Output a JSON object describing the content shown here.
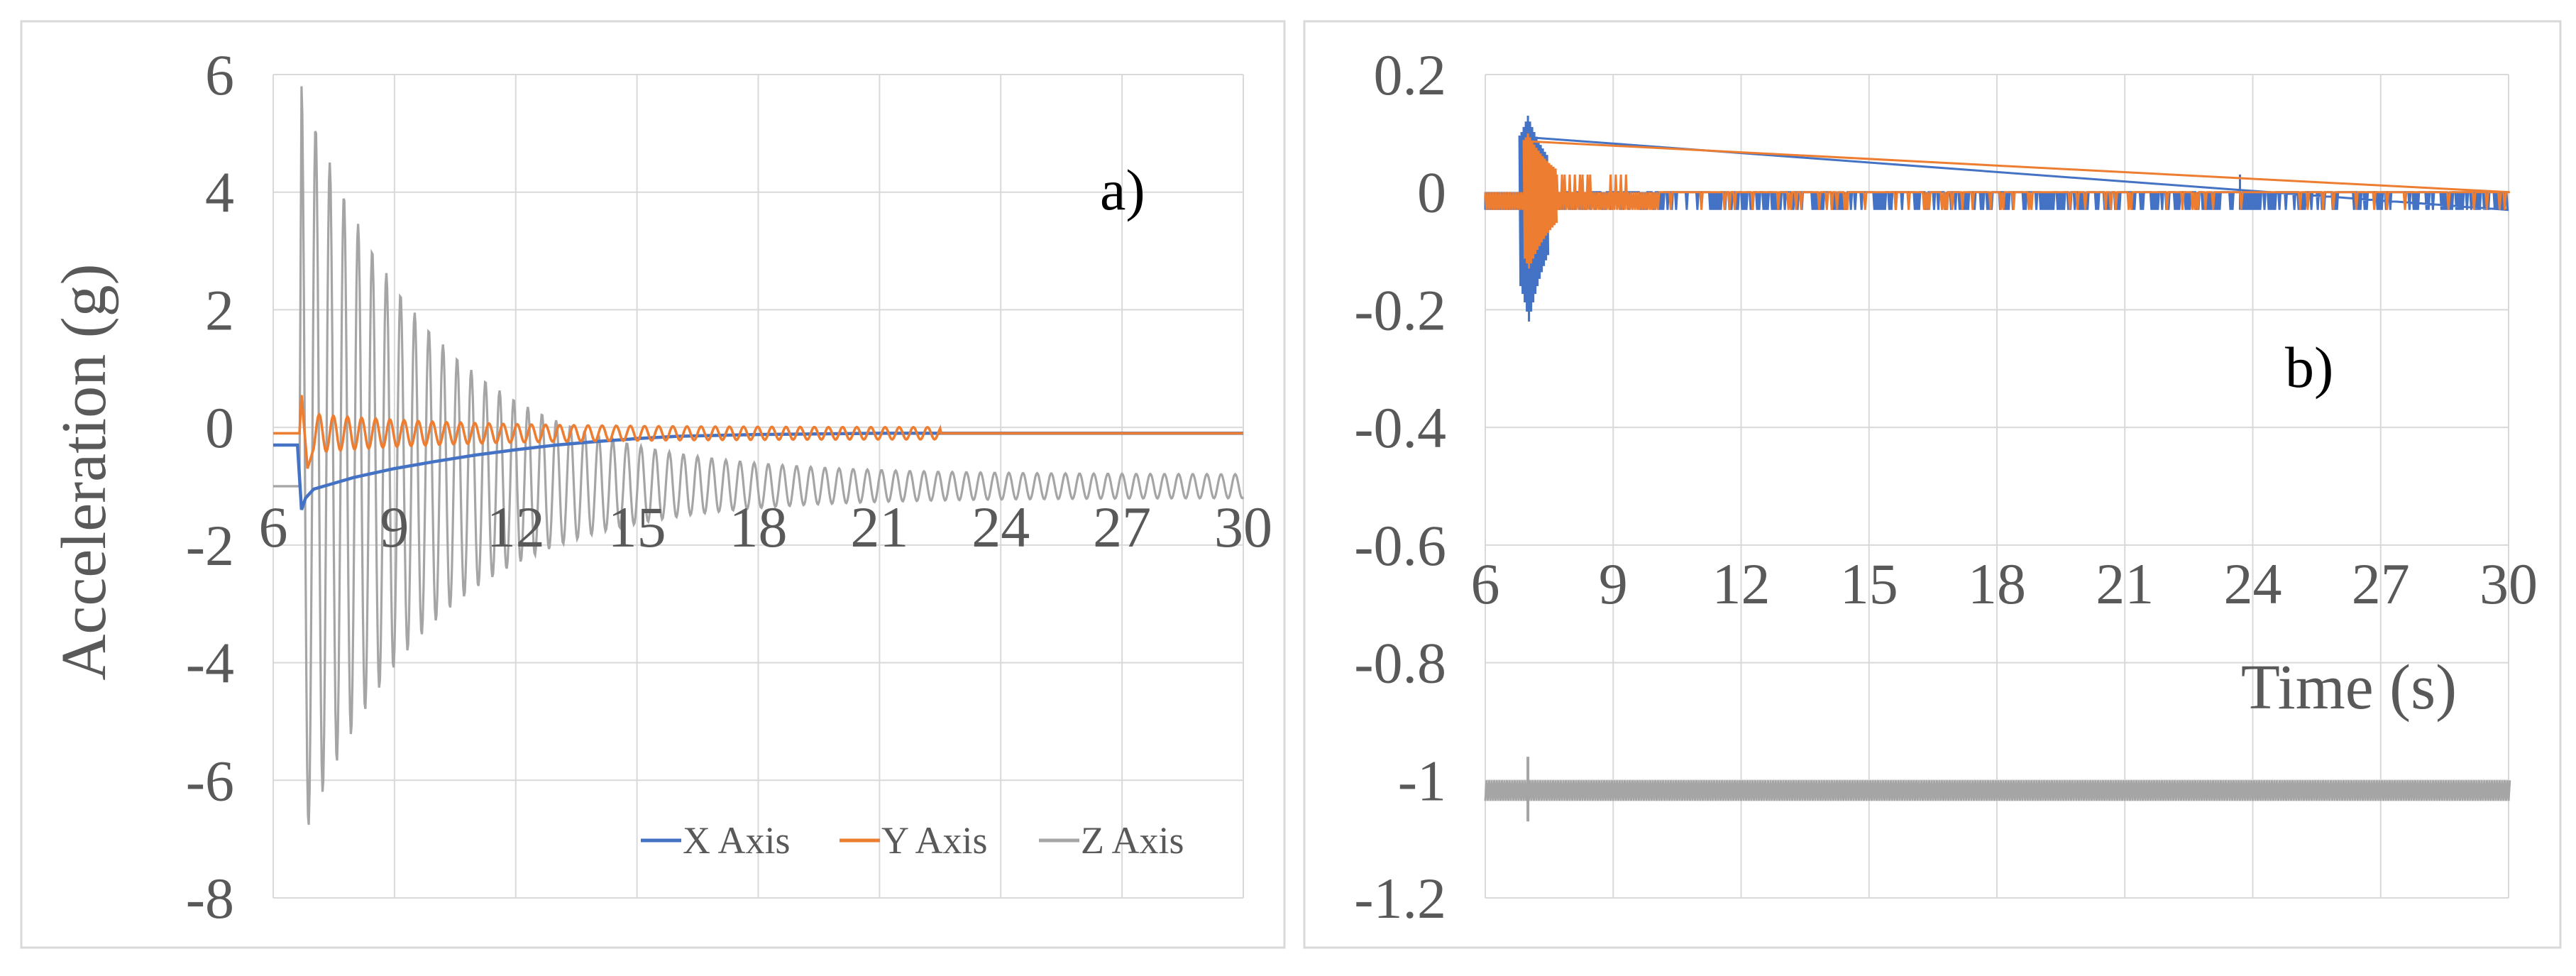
{
  "colors": {
    "x_axis": "#4472C4",
    "y_axis": "#ED7D31",
    "z_axis": "#A5A5A5",
    "gridline": "#D9D9D9",
    "text": "#595959",
    "frame": "#D9D9D9"
  },
  "chart_data": [
    {
      "type": "line",
      "panel_label": "a)",
      "title": "",
      "xlabel": "",
      "ylabel": "Acceleration (g)",
      "xlim": [
        6,
        30
      ],
      "ylim": [
        -8,
        6
      ],
      "x_ticks": [
        "6",
        "9",
        "12",
        "15",
        "18",
        "21",
        "24",
        "27",
        "30"
      ],
      "y_ticks": [
        "6",
        "4",
        "2",
        "0",
        "-2",
        "-4",
        "-6",
        "-8"
      ],
      "grid": true,
      "legend_position": "bottom-right",
      "series": [
        {
          "name": "X Axis",
          "x": [
            6.0,
            6.6,
            6.7,
            6.8,
            7.0,
            7.5,
            8.0,
            9.0,
            10.0,
            11.0,
            12.0,
            13.0,
            14.0,
            15.0,
            16.0,
            18.0,
            21.0,
            24.0,
            27.0,
            30.0
          ],
          "values": [
            -0.3,
            -0.3,
            -1.4,
            -1.2,
            -1.05,
            -0.95,
            -0.85,
            -0.7,
            -0.58,
            -0.47,
            -0.38,
            -0.3,
            -0.24,
            -0.19,
            -0.15,
            -0.12,
            -0.1,
            -0.1,
            -0.1,
            -0.1
          ]
        },
        {
          "name": "Y Axis",
          "x": [
            6.0,
            6.6,
            6.7,
            6.9,
            7.5,
            9.0,
            12.0,
            15.0,
            18.0,
            21.0,
            24.0,
            27.0,
            30.0
          ],
          "values": [
            -0.1,
            -0.1,
            0.55,
            -0.7,
            0.3,
            0.25,
            0.15,
            0.08,
            -0.3,
            -0.15,
            -0.1,
            -0.1,
            -0.1
          ],
          "oscillation": {
            "start": 6.7,
            "end": 22.5,
            "period": 0.35,
            "amplitude_start": 0.55,
            "amplitude_end": 0.1
          }
        },
        {
          "name": "Z Axis",
          "x": [
            6.0,
            6.6,
            6.8,
            7.0,
            8.0,
            9.0,
            12.0,
            15.0,
            18.0,
            21.0,
            24.0,
            27.0,
            30.0
          ],
          "values": [
            -1.0,
            -1.0,
            5.8,
            -7.1,
            4.1,
            3.4,
            1.6,
            -0.2,
            -0.7,
            -0.9,
            -1.0,
            -1.0,
            -1.0
          ],
          "oscillation": {
            "start": 6.7,
            "end": 21.5,
            "period": 0.35,
            "center": -1.0,
            "upper_start": 5.8,
            "lower_start": -7.1,
            "amplitude_end": 0.2
          }
        }
      ]
    },
    {
      "type": "line",
      "panel_label": "b)",
      "title": "",
      "xlabel": "Time (s)",
      "ylabel": "",
      "xlim": [
        6,
        30
      ],
      "ylim": [
        -1.2,
        0.2
      ],
      "x_ticks": [
        "6",
        "9",
        "12",
        "15",
        "18",
        "21",
        "24",
        "27",
        "30"
      ],
      "y_ticks": [
        "0.2",
        "0",
        "-0.2",
        "-0.4",
        "-0.6",
        "-0.8",
        "-1",
        "-1.2"
      ],
      "grid": true,
      "series": [
        {
          "name": "X Axis",
          "base": 0.0,
          "noise_low": -0.03,
          "burst": {
            "x": 7.0,
            "max": 0.13,
            "min": -0.22
          },
          "spike": {
            "x": 23.7,
            "value": 0.03
          }
        },
        {
          "name": "Y Axis",
          "base": 0.0,
          "noise_low": -0.03,
          "burst": {
            "x": 7.0,
            "max": 0.1,
            "min": -0.13,
            "oscillation_end": 9.5,
            "oscillation_high": 0.03
          }
        },
        {
          "name": "Z Axis",
          "base": -1.02,
          "band": [
            -1.035,
            -1.0
          ],
          "burst": {
            "x": 7.0,
            "max": -0.96,
            "min": -1.07
          }
        }
      ]
    }
  ]
}
